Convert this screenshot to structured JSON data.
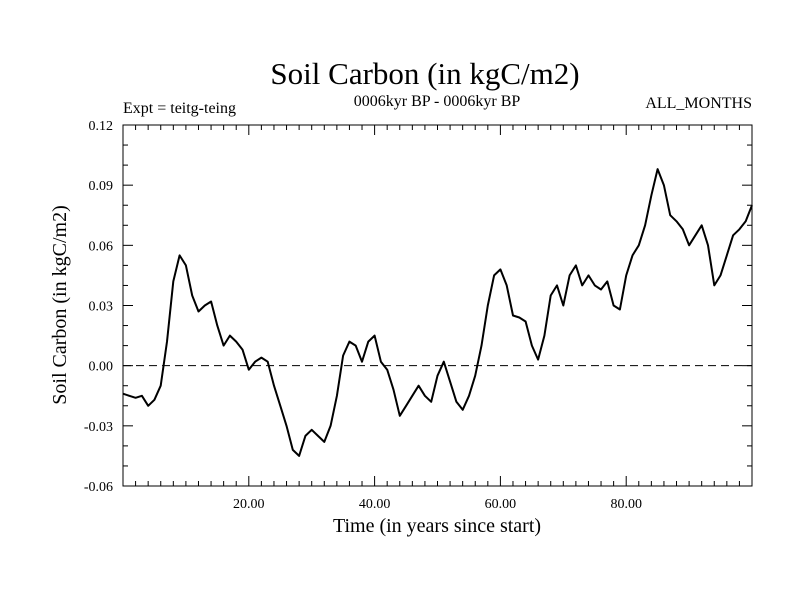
{
  "chart_data": {
    "type": "line",
    "title": "Soil Carbon (in kgC/m2)",
    "subtitle_left": "Expt = teitg-teing",
    "subtitle_center": "0006kyr BP - 0006kyr BP",
    "subtitle_right": "ALL_MONTHS",
    "xlabel": "Time (in years since start)",
    "ylabel": "Soil Carbon (in kgC/m2)",
    "xlim": [
      0,
      100
    ],
    "ylim": [
      -0.06,
      0.12
    ],
    "x_ticks": [
      20,
      40,
      60,
      80
    ],
    "x_tick_labels": [
      "20.00",
      "40.00",
      "60.00",
      "80.00"
    ],
    "y_ticks": [
      -0.06,
      -0.03,
      0.0,
      0.03,
      0.06,
      0.09,
      0.12
    ],
    "y_tick_labels": [
      "-0.06",
      "-0.03",
      "0.00",
      "0.03",
      "0.06",
      "0.09",
      "0.12"
    ],
    "reference_line": 0.0,
    "series": [
      {
        "name": "Soil Carbon",
        "x": [
          0,
          1,
          2,
          3,
          4,
          5,
          6,
          7,
          8,
          9,
          10,
          11,
          12,
          13,
          14,
          15,
          16,
          17,
          18,
          19,
          20,
          21,
          22,
          23,
          24,
          25,
          26,
          27,
          28,
          29,
          30,
          31,
          32,
          33,
          34,
          35,
          36,
          37,
          38,
          39,
          40,
          41,
          42,
          43,
          44,
          45,
          46,
          47,
          48,
          49,
          50,
          51,
          52,
          53,
          54,
          55,
          56,
          57,
          58,
          59,
          60,
          61,
          62,
          63,
          64,
          65,
          66,
          67,
          68,
          69,
          70,
          71,
          72,
          73,
          74,
          75,
          76,
          77,
          78,
          79,
          80,
          81,
          82,
          83,
          84,
          85,
          86,
          87,
          88,
          89,
          90,
          91,
          92,
          93,
          94,
          95,
          96,
          97,
          98,
          99,
          100
        ],
        "values": [
          -0.014,
          -0.015,
          -0.016,
          -0.015,
          -0.02,
          -0.017,
          -0.01,
          0.012,
          0.042,
          0.055,
          0.05,
          0.035,
          0.027,
          0.03,
          0.032,
          0.02,
          0.01,
          0.015,
          0.012,
          0.008,
          -0.002,
          0.002,
          0.004,
          0.002,
          -0.01,
          -0.02,
          -0.03,
          -0.042,
          -0.045,
          -0.035,
          -0.032,
          -0.035,
          -0.038,
          -0.03,
          -0.015,
          0.005,
          0.012,
          0.01,
          0.002,
          0.012,
          0.015,
          0.002,
          -0.002,
          -0.012,
          -0.025,
          -0.02,
          -0.015,
          -0.01,
          -0.015,
          -0.018,
          -0.005,
          0.002,
          -0.008,
          -0.018,
          -0.022,
          -0.015,
          -0.005,
          0.01,
          0.03,
          0.045,
          0.048,
          0.04,
          0.025,
          0.024,
          0.022,
          0.01,
          0.003,
          0.015,
          0.035,
          0.04,
          0.03,
          0.045,
          0.05,
          0.04,
          0.045,
          0.04,
          0.038,
          0.042,
          0.03,
          0.028,
          0.045,
          0.055,
          0.06,
          0.07,
          0.085,
          0.098,
          0.09,
          0.075,
          0.072,
          0.068,
          0.06,
          0.065,
          0.07,
          0.06,
          0.04,
          0.045,
          0.055,
          0.065,
          0.068,
          0.072,
          0.08
        ]
      }
    ]
  }
}
